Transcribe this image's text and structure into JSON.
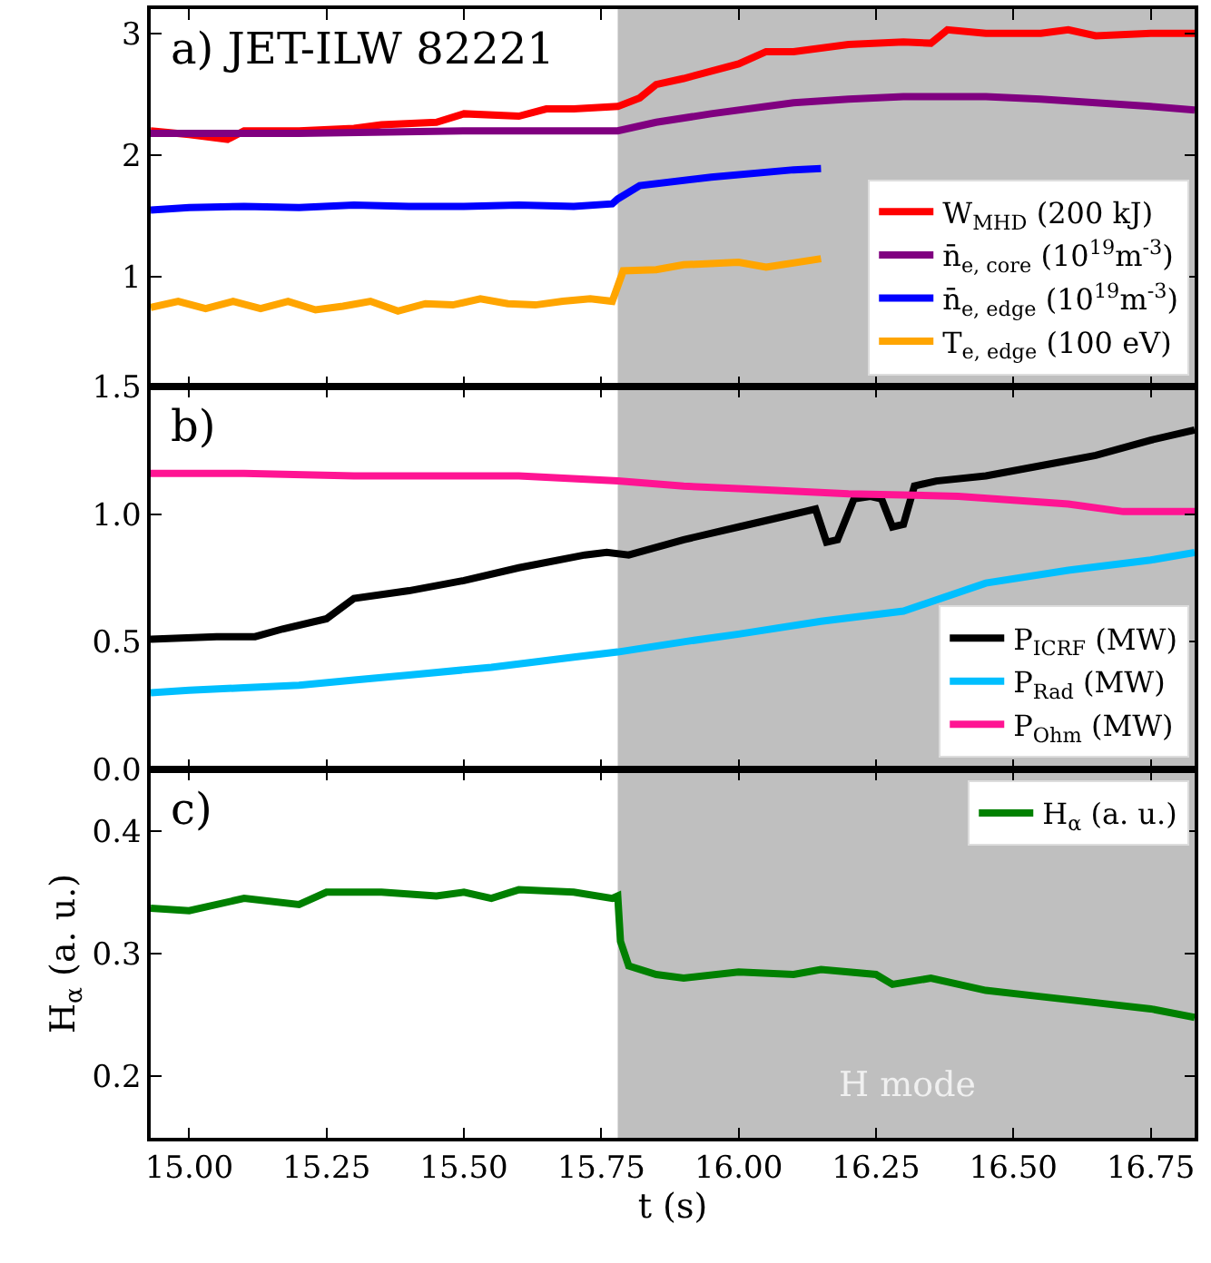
{
  "chart_data": [
    {
      "type": "line",
      "title": "a) JET-ILW 82221",
      "xlim": [
        14.93,
        16.83
      ],
      "ylim": [
        0.1,
        3.2
      ],
      "yticks": [
        1,
        2,
        3
      ],
      "xticks": [
        {
          "value": 15.0,
          "label": null
        },
        {
          "value": 15.25,
          "label": null
        },
        {
          "value": 15.5,
          "label": null
        },
        {
          "value": 15.75,
          "label": null
        },
        {
          "value": 16.0,
          "label": null
        },
        {
          "value": 16.25,
          "label": null
        },
        {
          "value": 16.5,
          "label": null
        },
        {
          "value": 16.75,
          "label": null
        }
      ],
      "tick_labels": "y",
      "legend": "bottom right",
      "grid": false,
      "bands": [
        {
          "axis": "x",
          "from": 15.78,
          "to": 16.83,
          "color": "#bfbfbf"
        }
      ],
      "series": [
        {
          "name": "W$_{MHD}$ (200 kJ)",
          "color": "#ff0000",
          "x": [
            14.93,
            15.0,
            15.07,
            15.1,
            15.2,
            15.3,
            15.35,
            15.45,
            15.5,
            15.6,
            15.65,
            15.7,
            15.78,
            15.82,
            15.85,
            15.9,
            16.0,
            16.05,
            16.1,
            16.2,
            16.3,
            16.35,
            16.38,
            16.45,
            16.55,
            16.6,
            16.65,
            16.75,
            16.83
          ],
          "values": [
            2.2,
            2.17,
            2.13,
            2.2,
            2.2,
            2.22,
            2.25,
            2.27,
            2.34,
            2.32,
            2.38,
            2.38,
            2.4,
            2.47,
            2.58,
            2.63,
            2.75,
            2.85,
            2.85,
            2.91,
            2.93,
            2.92,
            3.03,
            3.0,
            3.0,
            3.03,
            2.98,
            3.0,
            3.0
          ]
        },
        {
          "name": "n̄$_{e, core}$ (10$^{19}$m$^{-3}$)",
          "color": "#800080",
          "x": [
            14.93,
            15.2,
            15.5,
            15.78,
            15.85,
            15.95,
            16.1,
            16.2,
            16.3,
            16.45,
            16.55,
            16.65,
            16.75,
            16.83
          ],
          "values": [
            2.18,
            2.18,
            2.2,
            2.2,
            2.27,
            2.34,
            2.43,
            2.46,
            2.48,
            2.48,
            2.46,
            2.43,
            2.4,
            2.37
          ]
        },
        {
          "name": "n̄$_{e, edge}$ (10$^{19}$m$^{-3}$)",
          "color": "#0000ff",
          "x": [
            14.93,
            15.0,
            15.1,
            15.2,
            15.3,
            15.4,
            15.5,
            15.6,
            15.7,
            15.77,
            15.78,
            15.82,
            15.95,
            16.1,
            16.15
          ],
          "values": [
            1.55,
            1.57,
            1.58,
            1.57,
            1.59,
            1.58,
            1.58,
            1.59,
            1.58,
            1.6,
            1.64,
            1.75,
            1.82,
            1.88,
            1.89
          ]
        },
        {
          "name": "T$_{e, edge}$ (100 eV)",
          "color": "#ffa500",
          "x": [
            14.93,
            14.98,
            15.03,
            15.08,
            15.13,
            15.18,
            15.23,
            15.28,
            15.33,
            15.38,
            15.43,
            15.48,
            15.53,
            15.58,
            15.63,
            15.68,
            15.73,
            15.77,
            15.79,
            15.85,
            15.9,
            16.0,
            16.05,
            16.15
          ],
          "values": [
            0.75,
            0.8,
            0.74,
            0.8,
            0.74,
            0.8,
            0.73,
            0.76,
            0.8,
            0.72,
            0.78,
            0.77,
            0.82,
            0.78,
            0.77,
            0.8,
            0.82,
            0.8,
            1.05,
            1.06,
            1.1,
            1.12,
            1.08,
            1.15
          ]
        }
      ]
    },
    {
      "type": "line",
      "title": "b)",
      "xlim": [
        14.93,
        16.83
      ],
      "ylim": [
        0,
        1.5
      ],
      "yticks": [
        {
          "value": 0,
          "label": "0.0"
        },
        {
          "value": 0.5,
          "label": "0.5"
        },
        {
          "value": 1.0,
          "label": "1.0"
        },
        {
          "value": 1.5,
          "label": "1.5"
        }
      ],
      "xticks": [
        {
          "value": 15.0,
          "label": null
        },
        {
          "value": 15.25,
          "label": null
        },
        {
          "value": 15.5,
          "label": null
        },
        {
          "value": 15.75,
          "label": null
        },
        {
          "value": 16.0,
          "label": null
        },
        {
          "value": 16.25,
          "label": null
        },
        {
          "value": 16.5,
          "label": null
        },
        {
          "value": 16.75,
          "label": null
        }
      ],
      "tick_labels": "y",
      "legend": "bottom right",
      "grid": false,
      "bands": [
        {
          "axis": "x",
          "from": 15.78,
          "to": 16.83,
          "color": "#bfbfbf"
        }
      ],
      "series": [
        {
          "name": "P$_{ICRF}$ (MW)",
          "color": "#000000",
          "x": [
            14.93,
            15.05,
            15.12,
            15.17,
            15.25,
            15.3,
            15.4,
            15.5,
            15.6,
            15.72,
            15.76,
            15.8,
            15.9,
            16.0,
            16.08,
            16.12,
            16.14,
            16.16,
            16.18,
            16.21,
            16.24,
            16.26,
            16.28,
            16.3,
            16.32,
            16.34,
            16.36,
            16.45,
            16.55,
            16.65,
            16.75,
            16.83
          ],
          "values": [
            0.51,
            0.52,
            0.52,
            0.55,
            0.59,
            0.67,
            0.7,
            0.74,
            0.79,
            0.84,
            0.85,
            0.84,
            0.9,
            0.95,
            0.99,
            1.01,
            1.02,
            0.89,
            0.9,
            1.06,
            1.07,
            1.06,
            0.95,
            0.96,
            1.11,
            1.12,
            1.13,
            1.15,
            1.19,
            1.23,
            1.29,
            1.33
          ]
        },
        {
          "name": "P$_{Rad}$ (MW)",
          "color": "#00bfff",
          "x": [
            14.93,
            15.0,
            15.1,
            15.2,
            15.3,
            15.4,
            15.55,
            15.7,
            15.78,
            15.9,
            16.0,
            16.15,
            16.3,
            16.45,
            16.6,
            16.75,
            16.83
          ],
          "values": [
            0.3,
            0.31,
            0.32,
            0.33,
            0.35,
            0.37,
            0.4,
            0.44,
            0.46,
            0.5,
            0.53,
            0.58,
            0.62,
            0.73,
            0.78,
            0.82,
            0.85
          ]
        },
        {
          "name": "P$_{Ohm}$ (MW)",
          "color": "#ff1493",
          "x": [
            14.93,
            15.1,
            15.3,
            15.5,
            15.6,
            15.78,
            15.9,
            16.0,
            16.2,
            16.4,
            16.6,
            16.7,
            16.83
          ],
          "values": [
            1.16,
            1.16,
            1.15,
            1.15,
            1.15,
            1.13,
            1.11,
            1.1,
            1.08,
            1.07,
            1.04,
            1.01,
            1.01
          ]
        }
      ]
    },
    {
      "type": "line",
      "title": "c)",
      "xlabel": "t (s)",
      "ylabel": "H$_{α}$ (a. u.)",
      "xlim": [
        14.93,
        16.83
      ],
      "ylim": [
        0.15,
        0.45
      ],
      "yticks": [
        0.2,
        0.3,
        0.4
      ],
      "xticks": [
        {
          "value": 15.0,
          "label": "15.00"
        },
        {
          "value": 15.25,
          "label": "15.25"
        },
        {
          "value": 15.5,
          "label": "15.50"
        },
        {
          "value": 15.75,
          "label": "15.75"
        },
        {
          "value": 16.0,
          "label": "16.00"
        },
        {
          "value": 16.25,
          "label": "16.25"
        },
        {
          "value": 16.5,
          "label": "16.50"
        },
        {
          "value": 16.75,
          "label": "16.75"
        }
      ],
      "legend": "top right",
      "grid": false,
      "bands": [
        {
          "axis": "x",
          "from": 15.78,
          "to": 16.83,
          "color": "#bfbfbf",
          "label": "H mode"
        }
      ],
      "series": [
        {
          "name": "H$_{α}$ (a. u.)",
          "color": "#008000",
          "x": [
            14.93,
            15.0,
            15.1,
            15.2,
            15.25,
            15.35,
            15.45,
            15.5,
            15.55,
            15.6,
            15.7,
            15.77,
            15.78,
            15.785,
            15.8,
            15.85,
            15.9,
            16.0,
            16.1,
            16.15,
            16.25,
            16.28,
            16.35,
            16.45,
            16.55,
            16.65,
            16.75,
            16.83
          ],
          "values": [
            0.337,
            0.335,
            0.345,
            0.34,
            0.35,
            0.35,
            0.347,
            0.35,
            0.345,
            0.352,
            0.35,
            0.345,
            0.347,
            0.31,
            0.29,
            0.283,
            0.28,
            0.285,
            0.283,
            0.287,
            0.283,
            0.275,
            0.28,
            0.27,
            0.265,
            0.26,
            0.255,
            0.248
          ]
        }
      ]
    }
  ]
}
